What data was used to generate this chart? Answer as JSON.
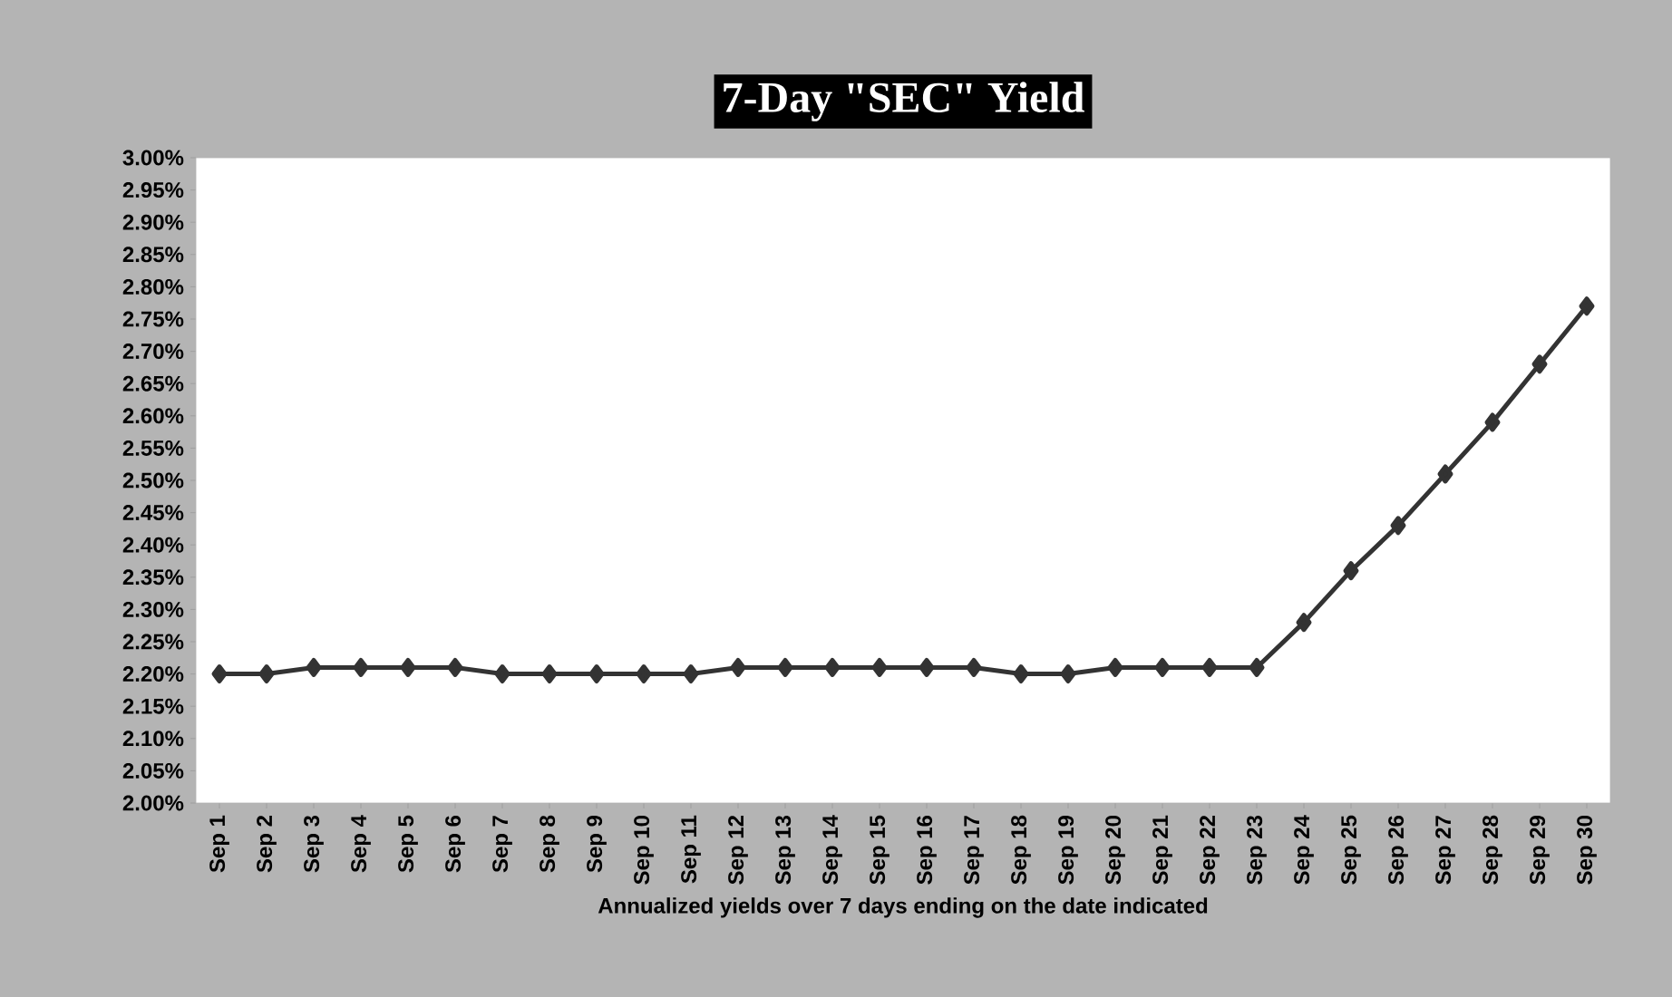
{
  "chart_data": {
    "type": "line",
    "title": "7-Day \"SEC\" Yield",
    "xlabel": "Annualized yields over 7 days ending on the date indicated",
    "categories": [
      "Sep 1",
      "Sep 2",
      "Sep 3",
      "Sep 4",
      "Sep 5",
      "Sep 6",
      "Sep 7",
      "Sep 8",
      "Sep 9",
      "Sep 10",
      "Sep 11",
      "Sep 12",
      "Sep 13",
      "Sep 14",
      "Sep 15",
      "Sep 16",
      "Sep 17",
      "Sep 18",
      "Sep 19",
      "Sep 20",
      "Sep 21",
      "Sep 22",
      "Sep 23",
      "Sep 24",
      "Sep 25",
      "Sep 26",
      "Sep 27",
      "Sep 28",
      "Sep 29",
      "Sep 30"
    ],
    "values": [
      2.2,
      2.2,
      2.21,
      2.21,
      2.21,
      2.21,
      2.2,
      2.2,
      2.2,
      2.2,
      2.2,
      2.21,
      2.21,
      2.21,
      2.21,
      2.21,
      2.21,
      2.2,
      2.2,
      2.21,
      2.21,
      2.21,
      2.21,
      2.28,
      2.36,
      2.43,
      2.51,
      2.59,
      2.68,
      2.77
    ],
    "color": "#333333",
    "marker": "diamond",
    "line_style": "solid",
    "ylim": [
      2.0,
      3.0
    ],
    "yticks": [
      {
        "value": 2.0,
        "label": "2.00%"
      },
      {
        "value": 2.05,
        "label": "2.05%"
      },
      {
        "value": 2.1,
        "label": "2.10%"
      },
      {
        "value": 2.15,
        "label": "2.15%"
      },
      {
        "value": 2.2,
        "label": "2.20%"
      },
      {
        "value": 2.25,
        "label": "2.25%"
      },
      {
        "value": 2.3,
        "label": "2.30%"
      },
      {
        "value": 2.35,
        "label": "2.35%"
      },
      {
        "value": 2.4,
        "label": "2.40%"
      },
      {
        "value": 2.45,
        "label": "2.45%"
      },
      {
        "value": 2.5,
        "label": "2.50%"
      },
      {
        "value": 2.55,
        "label": "2.55%"
      },
      {
        "value": 2.6,
        "label": "2.60%"
      },
      {
        "value": 2.65,
        "label": "2.65%"
      },
      {
        "value": 2.7,
        "label": "2.70%"
      },
      {
        "value": 2.75,
        "label": "2.75%"
      },
      {
        "value": 2.8,
        "label": "2.80%"
      },
      {
        "value": 2.85,
        "label": "2.85%"
      },
      {
        "value": 2.9,
        "label": "2.90%"
      },
      {
        "value": 2.95,
        "label": "2.95%"
      },
      {
        "value": 3.0,
        "label": "3.00%"
      }
    ]
  }
}
